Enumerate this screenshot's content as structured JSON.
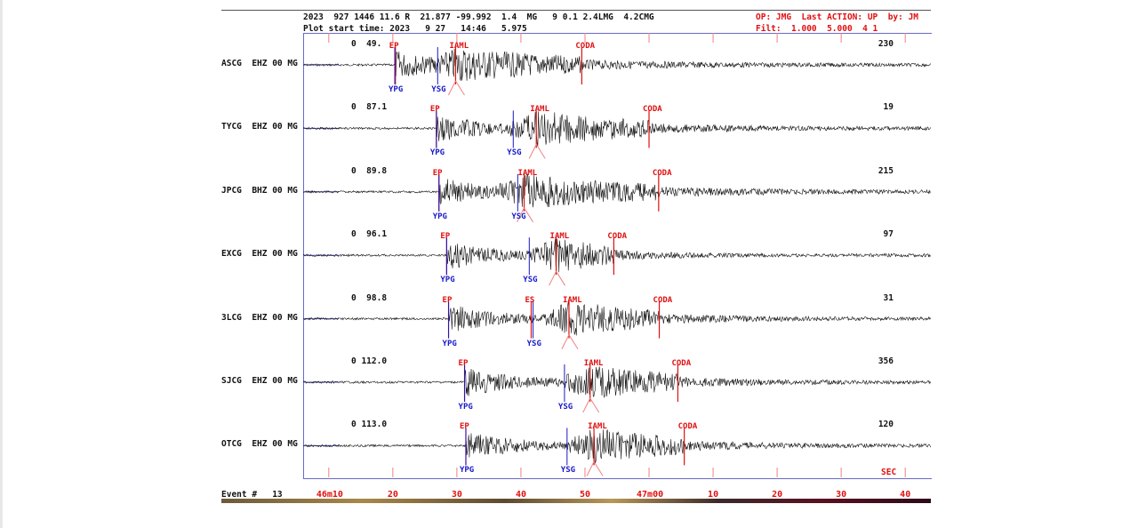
{
  "header": {
    "line1": "2023  927 1446 11.6 R  21.877 -99.992  1.4  MG   9 0.1 2.4LMG  4.2CMG",
    "line2": "Plot start time: 2023   9 27   14:46   5.975",
    "op_line": "OP: JMG  Last ACTION: UP  by: JM",
    "filt_line": "Filt:  1.000  5.000  4 1"
  },
  "traces": [
    {
      "station": "ASCG  EHZ 00 MG",
      "amp": "0  49.",
      "count": "230",
      "picks": [
        {
          "label": "EP",
          "color": "red",
          "t": 20.4,
          "row": "top"
        },
        {
          "label": "IAML",
          "color": "red",
          "t": 29.8,
          "row": "top"
        },
        {
          "label": "CODA",
          "color": "red",
          "t": 49.5,
          "row": "top"
        },
        {
          "label": "YPG",
          "color": "blue",
          "t": 20.3,
          "row": "bottom"
        },
        {
          "label": "YSG",
          "color": "blue",
          "t": 27.0,
          "row": "bottom"
        }
      ]
    },
    {
      "station": "TYCG  EHZ 00 MG",
      "amp": "0  87.1",
      "count": "19",
      "picks": [
        {
          "label": "EP",
          "color": "red",
          "t": 26.8,
          "row": "top"
        },
        {
          "label": "IAML",
          "color": "red",
          "t": 42.4,
          "row": "top"
        },
        {
          "label": "CODA",
          "color": "red",
          "t": 60.0,
          "row": "top"
        },
        {
          "label": "YPG",
          "color": "blue",
          "t": 26.8,
          "row": "bottom"
        },
        {
          "label": "YSG",
          "color": "blue",
          "t": 38.8,
          "row": "bottom"
        }
      ]
    },
    {
      "station": "JPCG  BHZ 00 MG",
      "amp": "0  89.8",
      "count": "215",
      "picks": [
        {
          "label": "EP",
          "color": "red",
          "t": 27.2,
          "row": "top"
        },
        {
          "label": "IAML",
          "color": "red",
          "t": 40.5,
          "row": "top"
        },
        {
          "label": "CODA",
          "color": "red",
          "t": 61.5,
          "row": "top"
        },
        {
          "label": "YPG",
          "color": "blue",
          "t": 27.2,
          "row": "bottom"
        },
        {
          "label": "YSG",
          "color": "blue",
          "t": 39.5,
          "row": "bottom"
        }
      ]
    },
    {
      "station": "EXCG  EHZ 00 MG",
      "amp": "0  96.1",
      "count": "97",
      "picks": [
        {
          "label": "EP",
          "color": "red",
          "t": 28.4,
          "row": "top"
        },
        {
          "label": "IAML",
          "color": "red",
          "t": 45.5,
          "row": "top"
        },
        {
          "label": "CODA",
          "color": "red",
          "t": 54.5,
          "row": "top"
        },
        {
          "label": "YPG",
          "color": "blue",
          "t": 28.4,
          "row": "bottom"
        },
        {
          "label": "YSG",
          "color": "blue",
          "t": 41.3,
          "row": "bottom"
        }
      ]
    },
    {
      "station": "3LCG  EHZ 00 MG",
      "amp": "0  98.8",
      "count": "31",
      "picks": [
        {
          "label": "EP",
          "color": "red",
          "t": 28.7,
          "row": "top"
        },
        {
          "label": "ES",
          "color": "red",
          "t": 41.6,
          "row": "top"
        },
        {
          "label": "IAML",
          "color": "red",
          "t": 47.5,
          "row": "top"
        },
        {
          "label": "CODA",
          "color": "red",
          "t": 61.6,
          "row": "top"
        },
        {
          "label": "YPG",
          "color": "blue",
          "t": 28.7,
          "row": "bottom"
        },
        {
          "label": "YSG",
          "color": "blue",
          "t": 41.9,
          "row": "bottom"
        }
      ]
    },
    {
      "station": "SJCG  EHZ 00 MG",
      "amp": "0 112.0",
      "count": "356",
      "picks": [
        {
          "label": "EP",
          "color": "red",
          "t": 31.2,
          "row": "top"
        },
        {
          "label": "IAML",
          "color": "red",
          "t": 50.8,
          "row": "top"
        },
        {
          "label": "CODA",
          "color": "red",
          "t": 64.5,
          "row": "top"
        },
        {
          "label": "YPG",
          "color": "blue",
          "t": 31.2,
          "row": "bottom"
        },
        {
          "label": "YSG",
          "color": "blue",
          "t": 46.8,
          "row": "bottom"
        }
      ]
    },
    {
      "station": "OTCG  EHZ 00 MG",
      "amp": "0 113.0",
      "count": "120",
      "picks": [
        {
          "label": "EP",
          "color": "red",
          "t": 31.4,
          "row": "top"
        },
        {
          "label": "IAML",
          "color": "red",
          "t": 51.4,
          "row": "top"
        },
        {
          "label": "CODA",
          "color": "red",
          "t": 65.5,
          "row": "top"
        },
        {
          "label": "YPG",
          "color": "blue",
          "t": 31.4,
          "row": "bottom"
        },
        {
          "label": "YSG",
          "color": "blue",
          "t": 47.2,
          "row": "bottom"
        }
      ]
    }
  ],
  "xaxis": {
    "t_start": 6.0,
    "t_end": 104.0,
    "ticks": [
      {
        "t": 10,
        "label": "46m10"
      },
      {
        "t": 20,
        "label": "20"
      },
      {
        "t": 30,
        "label": "30"
      },
      {
        "t": 40,
        "label": "40"
      },
      {
        "t": 50,
        "label": "50"
      },
      {
        "t": 60,
        "label": "47m00"
      },
      {
        "t": 70,
        "label": "10"
      },
      {
        "t": 80,
        "label": "20"
      },
      {
        "t": 90,
        "label": "30"
      },
      {
        "t": 100,
        "label": "40"
      }
    ],
    "unit_label": "SEC"
  },
  "footer": {
    "event_label": "Event #   13"
  },
  "colors": {
    "pick_red": "#e01010",
    "pick_blue": "#1818c8",
    "trace": "#111111",
    "frame": "#6a6ac8"
  }
}
